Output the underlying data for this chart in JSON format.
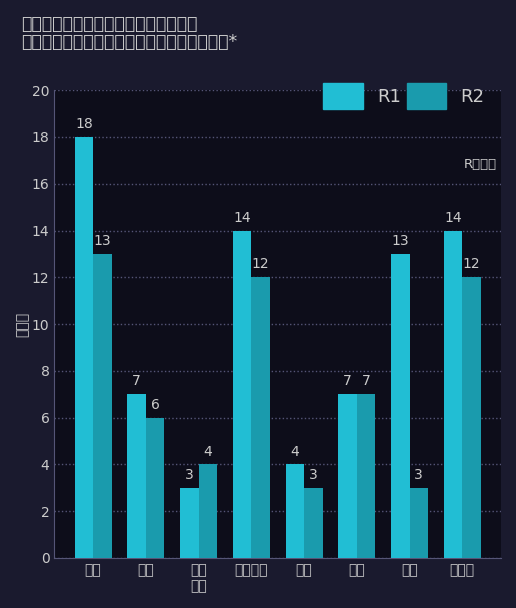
{
  "title_line1": "車両相互事故における二輪車運転者の",
  "title_line2": "通行目的別死亡事故件数比較【各年上半期】*",
  "ylabel": "（件）",
  "categories": [
    "通勤",
    "業務",
    "観光\n娯楽",
    "ドライブ",
    "飲食",
    "買物",
    "訪問",
    "その他"
  ],
  "r1_values": [
    18,
    7,
    3,
    14,
    4,
    7,
    13,
    14
  ],
  "r2_values": [
    13,
    6,
    4,
    12,
    3,
    7,
    3,
    12
  ],
  "r1_color": "#21BED4",
  "r2_color": "#1A9BAD",
  "bar_width": 0.35,
  "ylim": [
    0,
    20
  ],
  "yticks": [
    0,
    2,
    4,
    6,
    8,
    10,
    12,
    14,
    16,
    18,
    20
  ],
  "legend_r1": "R1",
  "legend_r2": "R2",
  "legend_note": "R＝令和",
  "background_color": "#1a1a2e",
  "plot_bg_color": "#0d0d1a",
  "grid_color": "#555577",
  "text_color": "#cccccc",
  "title_fontsize": 12.5,
  "label_fontsize": 10,
  "tick_fontsize": 10,
  "value_fontsize": 10
}
